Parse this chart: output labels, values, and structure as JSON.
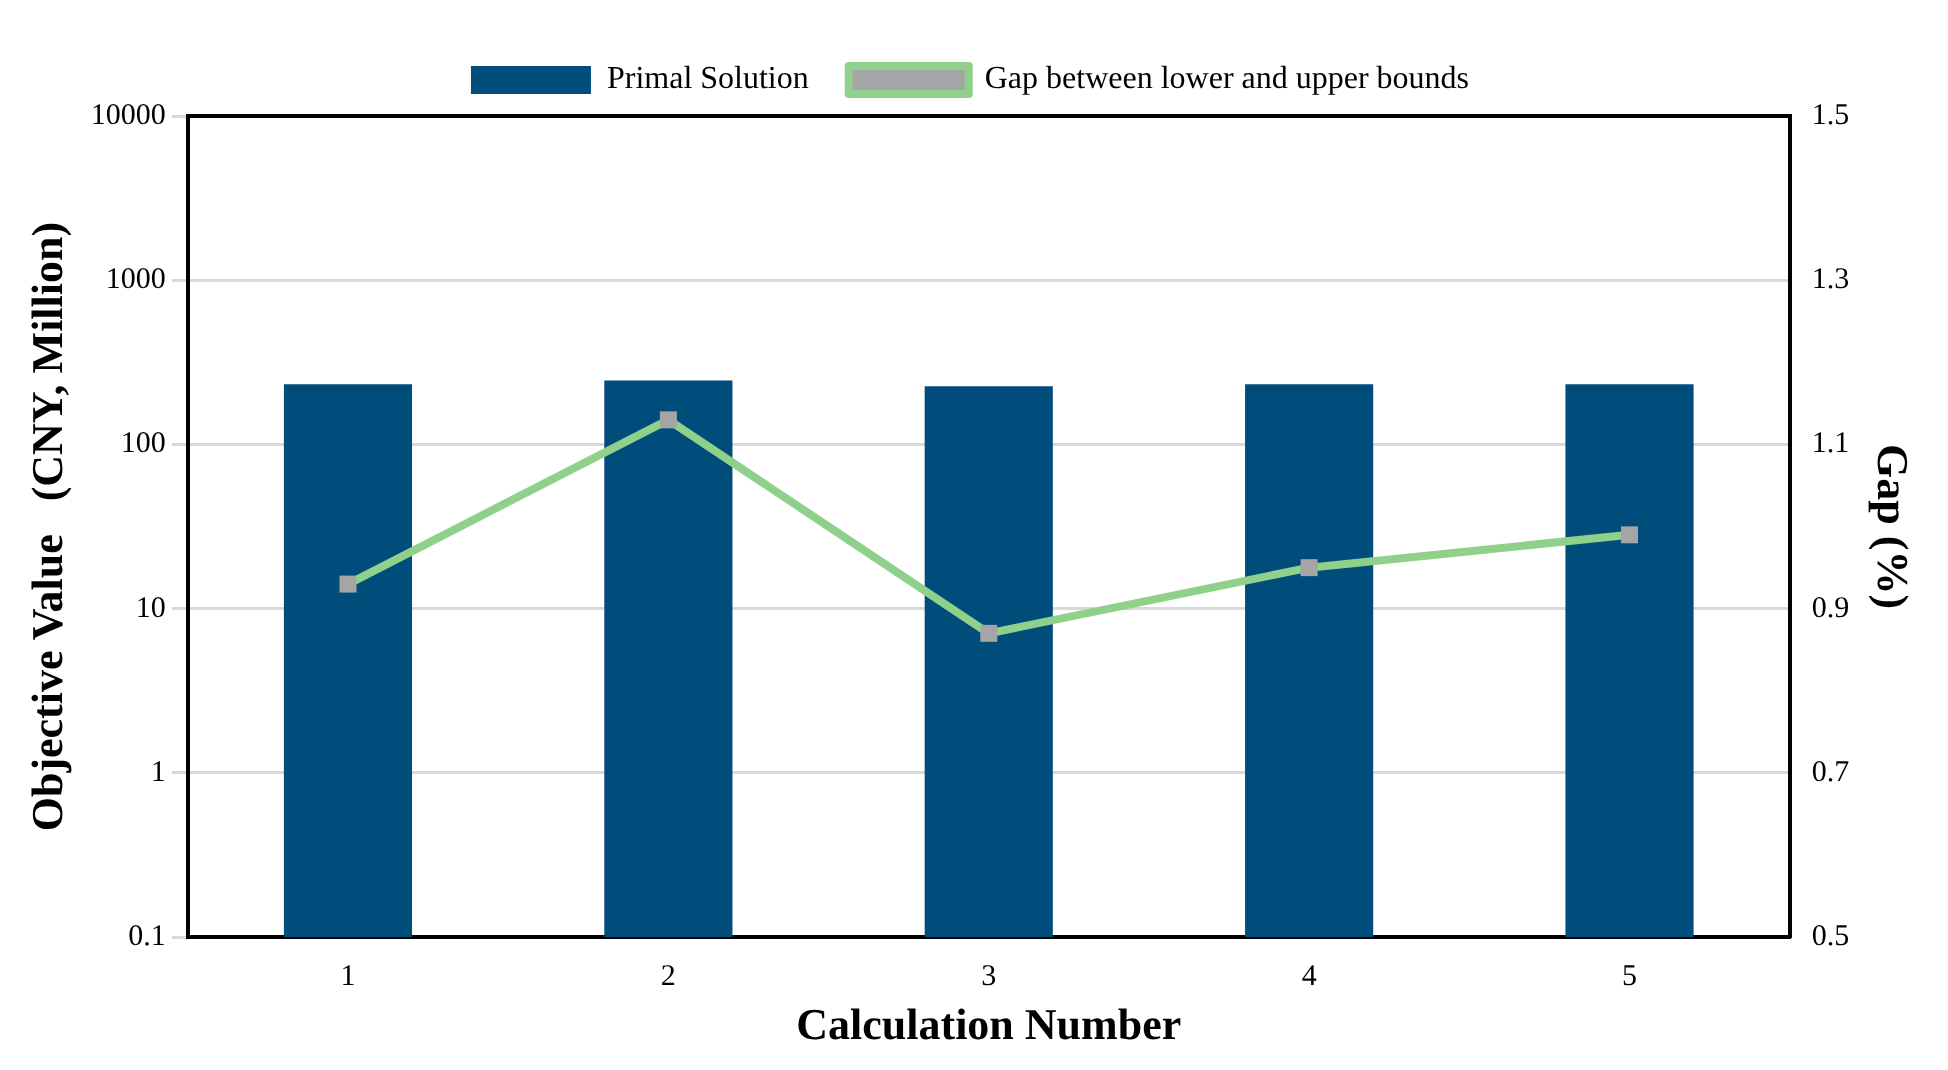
{
  "chart_data": {
    "type": "bar",
    "xlabel": "Calculation Number",
    "ylabel": "Objective Value   (CNY, Million)",
    "y2label": "Gap (%)",
    "categories": [
      "1",
      "2",
      "3",
      "4",
      "5"
    ],
    "series": [
      {
        "name": "Primal Solution",
        "color": "#004c7a",
        "values": [
          233,
          245,
          226,
          233,
          233
        ]
      },
      {
        "name": "Gap between lower and upper bounds",
        "type": "line",
        "axis": "y2",
        "color": "#8fd18a",
        "values": [
          0.93,
          1.13,
          0.87,
          0.95,
          0.99
        ]
      }
    ],
    "log": "y",
    "ylim": [
      0.1,
      10000
    ],
    "yticks": [
      0.1,
      1,
      10,
      100,
      1000,
      10000
    ],
    "y2lim": [
      0.5,
      1.5
    ],
    "y2ticks": [
      0.5,
      0.7,
      0.9,
      1.1,
      1.3,
      1.5
    ],
    "grid": "y",
    "legend": "top",
    "marker": "square"
  }
}
